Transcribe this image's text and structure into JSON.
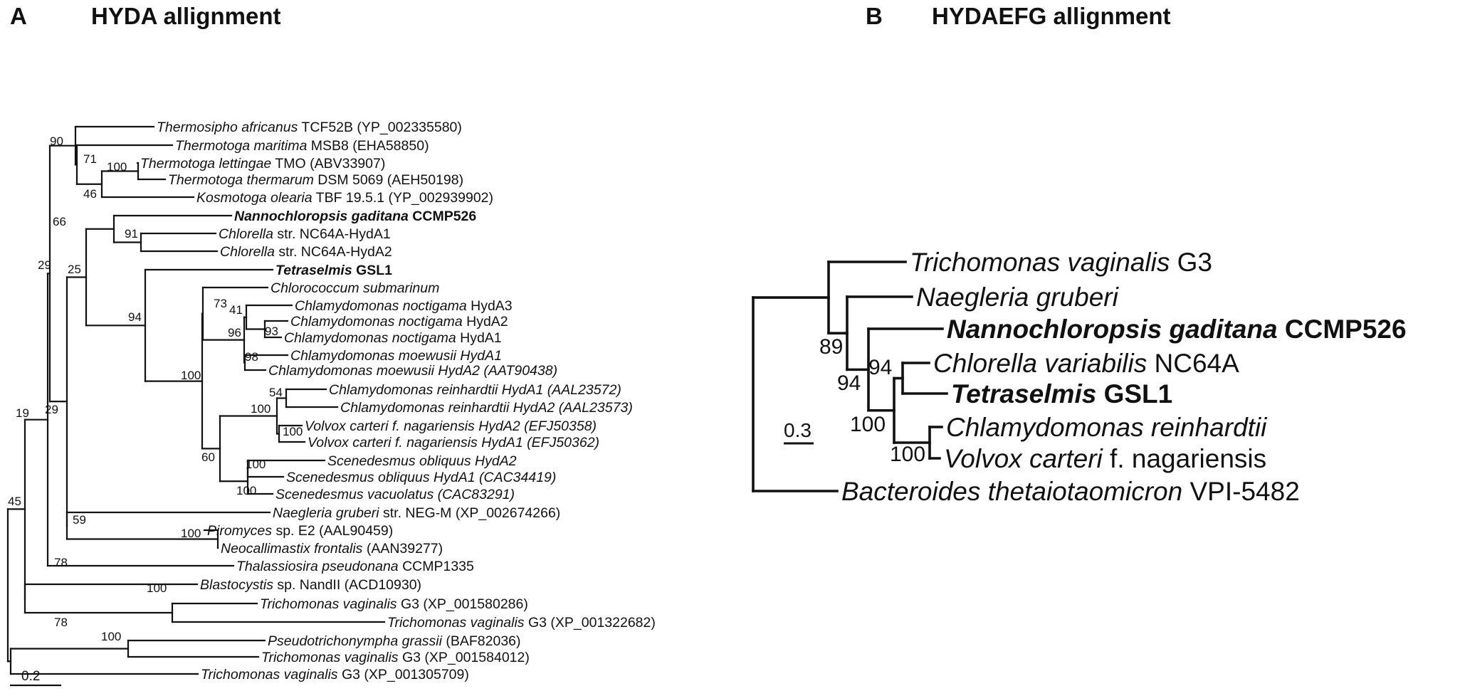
{
  "panel_a": {
    "letter": "A",
    "title": "HYDA allignment",
    "scale_label": "0.2",
    "taxa": [
      {
        "name": "Thermosipho africanus",
        "suffix": " TCF52B (YP_002335580)",
        "italic_suffix": false,
        "bold": false
      },
      {
        "name": "Thermotoga maritima",
        "suffix": " MSB8 (EHA58850)",
        "italic_suffix": false,
        "bold": false
      },
      {
        "name": "Thermotoga lettingae",
        "suffix": " TMO (ABV33907)",
        "italic_suffix": false,
        "bold": false
      },
      {
        "name": "Thermotoga thermarum",
        "suffix": " DSM 5069 (AEH50198)",
        "italic_suffix": false,
        "bold": false
      },
      {
        "name": "Kosmotoga olearia",
        "suffix": " TBF 19.5.1 (YP_002939902)",
        "italic_suffix": false,
        "bold": false
      },
      {
        "name": "Nannochloropsis gaditana",
        "suffix": " CCMP526",
        "italic_suffix": false,
        "bold": true
      },
      {
        "name": "Chlorella",
        "suffix": " str. NC64A-HydA1",
        "italic_suffix": false,
        "bold": false
      },
      {
        "name": "Chlorella",
        "suffix": " str. NC64A-HydA2",
        "italic_suffix": false,
        "bold": false
      },
      {
        "name": "Tetraselmis",
        "suffix": " GSL1",
        "italic_suffix": false,
        "bold": true
      },
      {
        "name": "Chlorococcum submarinum",
        "suffix": "",
        "italic_suffix": false,
        "bold": false
      },
      {
        "name": "Chlamydomonas noctigama",
        "suffix": " HydA3",
        "italic_suffix": false,
        "bold": false
      },
      {
        "name": "Chlamydomonas noctigama",
        "suffix": " HydA2",
        "italic_suffix": false,
        "bold": false
      },
      {
        "name": "Chlamydomonas noctigama",
        "suffix": " HydA1",
        "italic_suffix": false,
        "bold": false
      },
      {
        "name": "Chlamydomonas moewusii",
        "suffix": " HydA1",
        "italic_suffix": true,
        "bold": false
      },
      {
        "name": "Chlamydomonas moewusii",
        "suffix": " HydA2 (AAT90438)",
        "italic_suffix": true,
        "bold": false
      },
      {
        "name": "Chlamydomonas reinhardtii",
        "suffix": " HydA1 (AAL23572)",
        "italic_suffix": true,
        "bold": false
      },
      {
        "name": "Chlamydomonas reinhardtii",
        "suffix": " HydA2 (AAL23573)",
        "italic_suffix": true,
        "bold": false
      },
      {
        "name": "Volvox carteri",
        "suffix": " f. nagariensis HydA2 (EFJ50358)",
        "italic_suffix": true,
        "bold": false
      },
      {
        "name": "Volvox carteri",
        "suffix": " f. nagariensis HydA1 (EFJ50362)",
        "italic_suffix": true,
        "bold": false
      },
      {
        "name": "Scenedesmus obliquus",
        "suffix": " HydA2",
        "italic_suffix": true,
        "bold": false
      },
      {
        "name": "Scenedesmus obliquus",
        "suffix": " HydA1 (CAC34419)",
        "italic_suffix": true,
        "bold": false
      },
      {
        "name": "Scenedesmus vacuolatus",
        "suffix": " (CAC83291)",
        "italic_suffix": true,
        "bold": false
      },
      {
        "name": "Naegleria gruberi",
        "suffix": " str. NEG-M (XP_002674266)",
        "italic_suffix": false,
        "bold": false
      },
      {
        "name": "Piromyces",
        "suffix": " sp. E2 (AAL90459)",
        "italic_suffix": false,
        "bold": false
      },
      {
        "name": "Neocallimastix frontalis",
        "suffix": " (AAN39277)",
        "italic_suffix": false,
        "bold": false
      },
      {
        "name": "Thalassiosira pseudonana",
        "suffix": " CCMP1335",
        "italic_suffix": false,
        "bold": false
      },
      {
        "name": "Blastocystis",
        "suffix": " sp. NandII (ACD10930)",
        "italic_suffix": false,
        "bold": false
      },
      {
        "name": "Trichomonas vaginalis",
        "suffix": " G3 (XP_001580286)",
        "italic_suffix": false,
        "bold": false
      },
      {
        "name": "Trichomonas vaginalis",
        "suffix": " G3 (XP_001322682)",
        "italic_suffix": false,
        "bold": false
      },
      {
        "name": "Pseudotrichonympha grassii",
        "suffix": " (BAF82036)",
        "italic_suffix": false,
        "bold": false
      },
      {
        "name": "Trichomonas vaginalis",
        "suffix": " G3 (XP_001584012)",
        "italic_suffix": false,
        "bold": false
      },
      {
        "name": "Trichomonas vaginalis",
        "suffix": " G3 (XP_001305709)",
        "italic_suffix": false,
        "bold": false
      }
    ],
    "bootstrap": [
      "90",
      "71",
      "100",
      "46",
      "66",
      "91",
      "29",
      "25",
      "94",
      "73",
      "41",
      "96",
      "93",
      "98",
      "100",
      "54",
      "100",
      "100",
      "60",
      "100",
      "100",
      "59",
      "100",
      "29",
      "19",
      "45",
      "78",
      "100",
      "78",
      "100"
    ]
  },
  "panel_b": {
    "letter": "B",
    "title": "HYDAEFG allignment",
    "scale_label": "0.3",
    "taxa": [
      {
        "name": "Trichomonas vaginalis",
        "suffix": " G3",
        "bold": false,
        "italic_suffix": false
      },
      {
        "name": "Naegleria gruberi",
        "suffix": "",
        "bold": false,
        "italic_suffix": false
      },
      {
        "name": "Nannochloropsis gaditana",
        "suffix": " CCMP526",
        "bold": true,
        "italic_suffix": false
      },
      {
        "name": "Chlorella variabilis",
        "suffix": " NC64A",
        "bold": false,
        "italic_suffix": false
      },
      {
        "name": "Tetraselmis",
        "suffix": " GSL1",
        "bold": true,
        "italic_suffix": false
      },
      {
        "name": "Chlamydomonas reinhardtii",
        "suffix": "",
        "bold": false,
        "italic_suffix": false
      },
      {
        "name": "Volvox carteri",
        "suffix": " f. nagariensis",
        "bold": false,
        "italic_suffix": false
      },
      {
        "name": "Bacteroides thetaiotaomicron",
        "suffix": " VPI-5482",
        "bold": false,
        "italic_suffix": false
      }
    ],
    "bootstrap": [
      "89",
      "94",
      "94",
      "100",
      "100"
    ]
  }
}
